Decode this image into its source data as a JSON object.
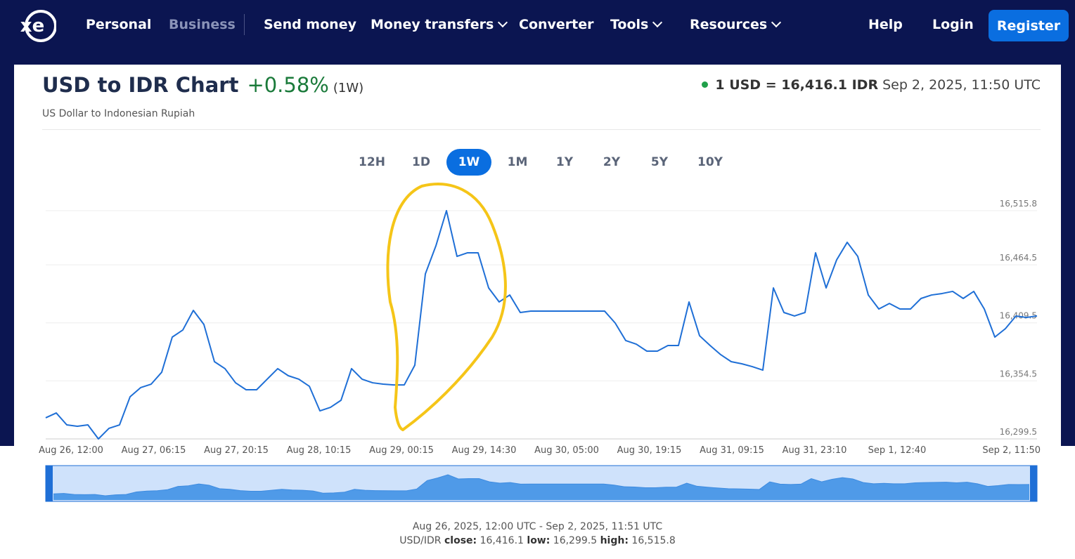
{
  "nav": {
    "logo": "xe",
    "links": [
      "Personal",
      "Business",
      "Send money",
      "Money transfers",
      "Converter",
      "Tools",
      "Resources"
    ],
    "right": [
      "Help",
      "Login"
    ],
    "button": "Register"
  },
  "header": {
    "title": "USD to IDR Chart",
    "change": "+0.58%",
    "period": "(1W)",
    "subtitle": "US Dollar to Indonesian Rupiah",
    "rate": "1 USD = 16,416.1 IDR",
    "timestamp": "Sep 2, 2025, 11:50 UTC"
  },
  "tabs": [
    "12H",
    "1D",
    "1W",
    "1M",
    "1Y",
    "2Y",
    "5Y",
    "10Y"
  ],
  "chart_data": {
    "type": "line",
    "color": "#1f6fd6",
    "grid": true,
    "ylim": [
      16299.5,
      16515.8
    ],
    "yticks": [
      {
        "value": 16299.5,
        "label": "16,299.5"
      },
      {
        "value": 16354.5,
        "label": "16,354.5"
      },
      {
        "value": 16409.5,
        "label": "16,409.5"
      },
      {
        "value": 16464.5,
        "label": "16,464.5"
      },
      {
        "value": 16515.8,
        "label": "16,515.8"
      }
    ],
    "xtick_labels": [
      "Aug 26, 12:00",
      "Aug 27, 06:15",
      "Aug 27, 20:15",
      "Aug 28, 10:15",
      "Aug 29, 00:15",
      "Aug 29, 14:30",
      "Aug 30, 05:00",
      "Aug 30, 19:15",
      "Aug 31, 09:15",
      "Aug 31, 23:10",
      "Sep 1, 12:40",
      "Sep 2, 11:50"
    ],
    "values": [
      16319.5,
      16324.1,
      16312.8,
      16311.5,
      16312.8,
      16299.5,
      16309.5,
      16312.8,
      16339.4,
      16348.1,
      16351.4,
      16362.7,
      16396.0,
      16402.7,
      16421.3,
      16408.0,
      16372.7,
      16366.1,
      16352.7,
      16346.1,
      16346.1,
      16356.1,
      16366.1,
      16359.4,
      16356.1,
      16349.4,
      16326.1,
      16329.4,
      16336.1,
      16366.1,
      16356.1,
      16352.7,
      16351.4,
      16350.7,
      16350.7,
      16369.4,
      16455.9,
      16482.5,
      16515.8,
      16472.5,
      16475.9,
      16475.9,
      16442.6,
      16429.3,
      16435.9,
      16419.3,
      16420.6,
      16420.6,
      16420.6,
      16420.6,
      16420.6,
      16420.6,
      16420.6,
      16420.6,
      16409.3,
      16392.7,
      16389.3,
      16382.7,
      16382.7,
      16388.0,
      16388.0,
      16429.3,
      16397.3,
      16388.0,
      16379.4,
      16372.7,
      16370.7,
      16368.0,
      16364.7,
      16442.6,
      16419.3,
      16416.0,
      16419.3,
      16475.9,
      16442.6,
      16469.2,
      16485.8,
      16472.5,
      16435.9,
      16422.6,
      16427.9,
      16422.6,
      16422.6,
      16432.6,
      16435.9,
      16437.3,
      16439.3,
      16432.6,
      16439.3,
      16422.6,
      16396.0,
      16404.0,
      16416.0,
      16414.6,
      16416.1
    ]
  },
  "footer": {
    "range": "Aug 26, 2025, 12:00 UTC - Sep 2, 2025, 11:51 UTC",
    "pair": "USD/IDR",
    "close_label": "close:",
    "close": "16,416.1",
    "low_label": "low:",
    "low": "16,299.5",
    "high_label": "high:",
    "high": "16,515.8"
  }
}
